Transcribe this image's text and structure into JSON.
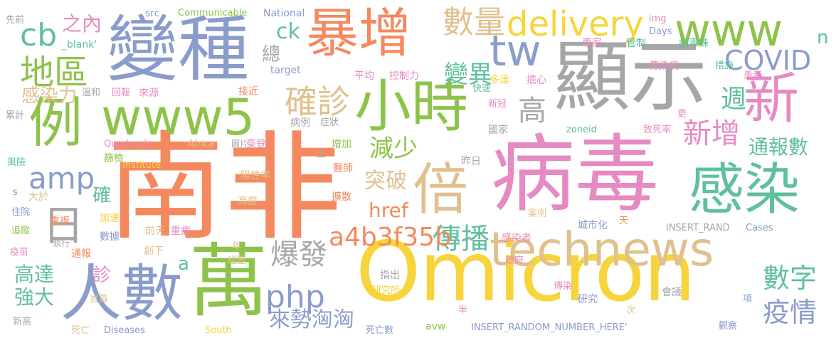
{
  "palette": {
    "orange": "#f4895f",
    "green": "#8dc34a",
    "blue": "#8a9ccc",
    "pink": "#e68ac3",
    "yellow": "#f7d43c",
    "tan": "#e0c18e",
    "gray": "#a6a6a6",
    "teal": "#5fc09b"
  },
  "words": [
    {
      "text": "南非",
      "color": "orange"
    },
    {
      "text": "病毒",
      "color": "pink"
    },
    {
      "text": "Omicron",
      "color": "yellow"
    },
    {
      "text": "顯示",
      "color": "gray"
    },
    {
      "text": "變種",
      "color": "blue"
    },
    {
      "text": "暴增",
      "color": "orange"
    },
    {
      "text": "萬",
      "color": "green"
    },
    {
      "text": "人數",
      "color": "blue"
    },
    {
      "text": "小時",
      "color": "green"
    },
    {
      "text": "倍",
      "color": "tan"
    },
    {
      "text": "technews",
      "color": "tan"
    },
    {
      "text": "感染",
      "color": "teal"
    },
    {
      "text": "www5",
      "color": "green"
    },
    {
      "text": "www",
      "color": "green"
    },
    {
      "text": "新",
      "color": "pink"
    },
    {
      "text": "例",
      "color": "green"
    },
    {
      "text": "tw",
      "color": "blue"
    },
    {
      "text": "delivery",
      "color": "yellow"
    },
    {
      "text": "數量",
      "color": "tan"
    },
    {
      "text": "確診",
      "color": "tan"
    },
    {
      "text": "COVID",
      "color": "blue"
    },
    {
      "text": "傳播",
      "color": "teal"
    },
    {
      "text": "爆發",
      "color": "gray"
    },
    {
      "text": "php",
      "color": "blue"
    },
    {
      "text": "amp",
      "color": "blue"
    },
    {
      "text": "a4b3f35b",
      "color": "orange"
    },
    {
      "text": "數字",
      "color": "teal"
    },
    {
      "text": "疫情",
      "color": "blue"
    },
    {
      "text": "新增",
      "color": "pink"
    },
    {
      "text": "週",
      "color": "teal"
    },
    {
      "text": "高",
      "color": "gray"
    },
    {
      "text": "變異",
      "color": "teal"
    },
    {
      "text": "地區",
      "color": "green"
    },
    {
      "text": "cb",
      "color": "teal"
    },
    {
      "text": "之內",
      "color": "pink"
    },
    {
      "text": "感染力",
      "color": "tan"
    },
    {
      "text": "日",
      "color": "gray"
    },
    {
      "text": "ck",
      "color": "teal"
    },
    {
      "text": "總",
      "color": "gray"
    },
    {
      "text": "減少",
      "color": "green"
    },
    {
      "text": "突破",
      "color": "tan"
    },
    {
      "text": "href",
      "color": "orange"
    },
    {
      "text": "通報數",
      "color": "teal"
    },
    {
      "text": "來勢洶洶",
      "color": "blue"
    },
    {
      "text": "高達",
      "color": "teal"
    },
    {
      "text": "強大",
      "color": "teal"
    },
    {
      "text": "確",
      "color": "teal"
    },
    {
      "text": "n",
      "color": "teal"
    },
    {
      "text": "a",
      "color": "teal"
    },
    {
      "text": "診",
      "color": "pink"
    },
    {
      "text": "先前",
      "color": "gray"
    },
    {
      "text": "src",
      "color": "blue"
    },
    {
      "text": "Communicable",
      "color": "green"
    },
    {
      "text": "National",
      "color": "blue"
    },
    {
      "text": "img",
      "color": "pink"
    },
    {
      "text": "專家",
      "color": "pink"
    },
    {
      "text": "管制",
      "color": "teal"
    },
    {
      "text": "Days",
      "color": "blue"
    },
    {
      "text": "病毒株",
      "color": "teal"
    },
    {
      "text": "_blank'",
      "color": "teal"
    },
    {
      "text": "target",
      "color": "blue"
    },
    {
      "text": "平均",
      "color": "pink"
    },
    {
      "text": "控制力",
      "color": "pink"
    },
    {
      "text": "多達",
      "color": "yellow"
    },
    {
      "text": "擔心",
      "color": "pink"
    },
    {
      "text": "傳染病",
      "color": "pink"
    },
    {
      "text": "措施",
      "color": "teal"
    },
    {
      "text": "患者",
      "color": "pink"
    },
    {
      "text": "溫和",
      "color": "gray"
    },
    {
      "text": "回報",
      "color": "pink"
    },
    {
      "text": "來源",
      "color": "pink"
    },
    {
      "text": "接近",
      "color": "orange"
    },
    {
      "text": "新冠",
      "color": "pink"
    },
    {
      "text": "累計",
      "color": "gray"
    },
    {
      "text": "病例",
      "color": "gray"
    },
    {
      "text": "症狀",
      "color": "gray"
    },
    {
      "text": "國家",
      "color": "gray"
    },
    {
      "text": "zoneid",
      "color": "teal"
    },
    {
      "text": "致死率",
      "color": "pink"
    },
    {
      "text": "更",
      "color": "pink"
    },
    {
      "text": "Quadruple",
      "color": "pink"
    },
    {
      "text": "Africa",
      "color": "tan"
    },
    {
      "text": "圖片",
      "color": "gray"
    },
    {
      "text": "豪登",
      "color": "pink"
    },
    {
      "text": "增加",
      "color": "green"
    },
    {
      "text": "篩檢",
      "color": "green"
    },
    {
      "text": "Institute",
      "color": "yellow"
    },
    {
      "text": "風險",
      "color": "teal"
    },
    {
      "text": "三",
      "color": "gray"
    },
    {
      "text": "昨日",
      "color": "gray"
    },
    {
      "text": "陽性率",
      "color": "tan"
    },
    {
      "text": "醫師",
      "color": "orange"
    },
    {
      "text": "s",
      "color": "blue"
    },
    {
      "text": "大於",
      "color": "tan"
    },
    {
      "text": "高度",
      "color": "tan"
    },
    {
      "text": "擴散",
      "color": "orange"
    },
    {
      "text": "住院",
      "color": "blue"
    },
    {
      "text": "重複",
      "color": "orange"
    },
    {
      "text": "加速",
      "color": "yellow"
    },
    {
      "text": "前天",
      "color": "tan"
    },
    {
      "text": "重症",
      "color": "pink"
    },
    {
      "text": "追蹤",
      "color": "green"
    },
    {
      "text": "數據",
      "color": "blue"
    },
    {
      "text": "案例",
      "color": "tan"
    },
    {
      "text": "城市化",
      "color": "blue"
    },
    {
      "text": "天",
      "color": "orange"
    },
    {
      "text": "INSERT_RAND",
      "color": "gray"
    },
    {
      "text": "Cases",
      "color": "blue"
    },
    {
      "text": "疫苗",
      "color": "pink"
    },
    {
      "text": "執行",
      "color": "gray"
    },
    {
      "text": "通報",
      "color": "orange"
    },
    {
      "text": "創下",
      "color": "tan"
    },
    {
      "text": "感染者",
      "color": "pink"
    },
    {
      "text": "年",
      "color": "tan"
    },
    {
      "text": "經歷",
      "color": "tan"
    },
    {
      "text": "政府",
      "color": "pink"
    },
    {
      "text": "指出",
      "color": "gray"
    },
    {
      "text": "研究所",
      "color": "yellow"
    },
    {
      "text": "傳染",
      "color": "pink"
    },
    {
      "text": "研究",
      "color": "blue"
    },
    {
      "text": "會議",
      "color": "gray"
    },
    {
      "text": "項",
      "color": "blue"
    },
    {
      "text": "官員",
      "color": "tan"
    },
    {
      "text": "半",
      "color": "pink"
    },
    {
      "text": "次",
      "color": "tan"
    },
    {
      "text": "新高",
      "color": "gray"
    },
    {
      "text": "死亡",
      "color": "tan"
    },
    {
      "text": "Diseases",
      "color": "blue"
    },
    {
      "text": "South",
      "color": "yellow"
    },
    {
      "text": "死亡數",
      "color": "blue"
    },
    {
      "text": "avw",
      "color": "green"
    },
    {
      "text": "INSERT_RANDOM_NUMBER_HERE'",
      "color": "blue"
    },
    {
      "text": "觀察",
      "color": "blue"
    },
    {
      "text": "快速",
      "color": "teal"
    }
  ]
}
